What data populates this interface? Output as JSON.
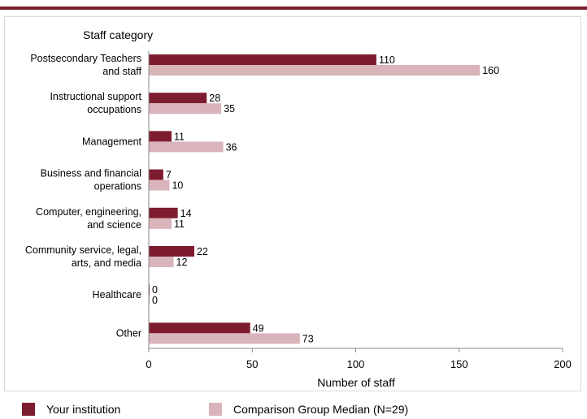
{
  "chart_data": {
    "type": "bar",
    "orientation": "horizontal",
    "title": "Staff category",
    "xlabel": "Number of staff",
    "xlim": [
      0,
      200
    ],
    "xticks": [
      0,
      50,
      100,
      150,
      200
    ],
    "categories": [
      [
        "Postsecondary Teachers",
        "and staff"
      ],
      [
        "Instructional support",
        "occupations"
      ],
      [
        "Management"
      ],
      [
        "Business and financial",
        "operations"
      ],
      [
        "Computer, engineering,",
        "and science"
      ],
      [
        "Community service, legal,",
        "arts, and media"
      ],
      [
        "Healthcare"
      ],
      [
        "Other"
      ]
    ],
    "series": [
      {
        "name": "Your institution",
        "color": "#7d1c2e",
        "values": [
          110,
          28,
          11,
          7,
          14,
          22,
          0,
          49
        ]
      },
      {
        "name": "Comparison Group Median (N=29)",
        "color": "#d9b4ba",
        "values": [
          160,
          35,
          36,
          10,
          11,
          12,
          0,
          73
        ]
      }
    ],
    "grid": false,
    "legend_position": "bottom"
  },
  "colors": {
    "accent_bar": "#7a1f2e",
    "frame_border": "#d9d9d9",
    "axis": "#888888"
  }
}
